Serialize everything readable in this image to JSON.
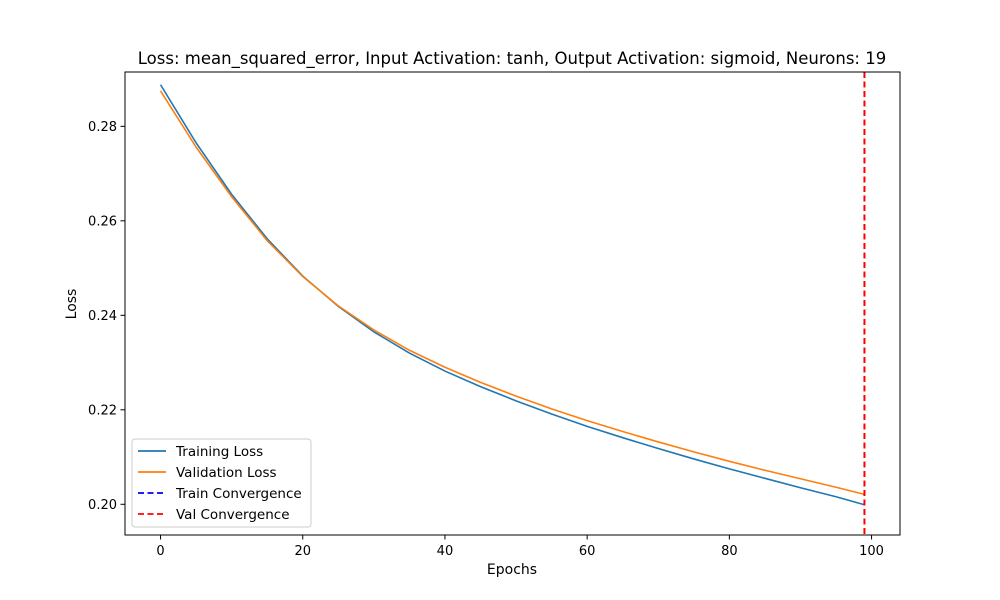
{
  "chart_data": {
    "type": "line",
    "title": "Loss: mean_squared_error, Input Activation: tanh, Output Activation: sigmoid, Neurons: 19",
    "xlabel": "Epochs",
    "ylabel": "Loss",
    "xlim": [
      -5,
      104
    ],
    "ylim": [
      0.1935,
      0.2915
    ],
    "xticks": [
      0,
      20,
      40,
      60,
      80,
      100
    ],
    "yticks": [
      0.2,
      0.22,
      0.24,
      0.26,
      0.28
    ],
    "grid": false,
    "legend_position": "lower-left",
    "series": [
      {
        "name": "Training Loss",
        "color": "#1f77b4",
        "style": "solid",
        "x": [
          0,
          5,
          10,
          15,
          20,
          25,
          30,
          35,
          40,
          45,
          50,
          55,
          60,
          65,
          70,
          75,
          80,
          85,
          90,
          95,
          99
        ],
        "y": [
          0.2888,
          0.2765,
          0.2656,
          0.2562,
          0.2483,
          0.2419,
          0.2365,
          0.232,
          0.2282,
          0.2249,
          0.2219,
          0.2191,
          0.2165,
          0.2141,
          0.2118,
          0.2096,
          0.2075,
          0.2055,
          0.2035,
          0.2016,
          0.1999
        ]
      },
      {
        "name": "Validation Loss",
        "color": "#ff7f0e",
        "style": "solid",
        "x": [
          0,
          5,
          10,
          15,
          20,
          25,
          30,
          35,
          40,
          45,
          50,
          55,
          60,
          65,
          70,
          75,
          80,
          85,
          90,
          95,
          99
        ],
        "y": [
          0.2875,
          0.2756,
          0.2651,
          0.2558,
          0.2482,
          0.242,
          0.2369,
          0.2326,
          0.229,
          0.2258,
          0.2229,
          0.2202,
          0.2177,
          0.2154,
          0.2132,
          0.2111,
          0.2091,
          0.2072,
          0.2054,
          0.2036,
          0.2021
        ]
      },
      {
        "name": "Train Convergence",
        "color": "#0000ff",
        "style": "dashed",
        "vline_x": null
      },
      {
        "name": "Val Convergence",
        "color": "#ff0000",
        "style": "dashed",
        "vline_x": 99
      }
    ]
  }
}
